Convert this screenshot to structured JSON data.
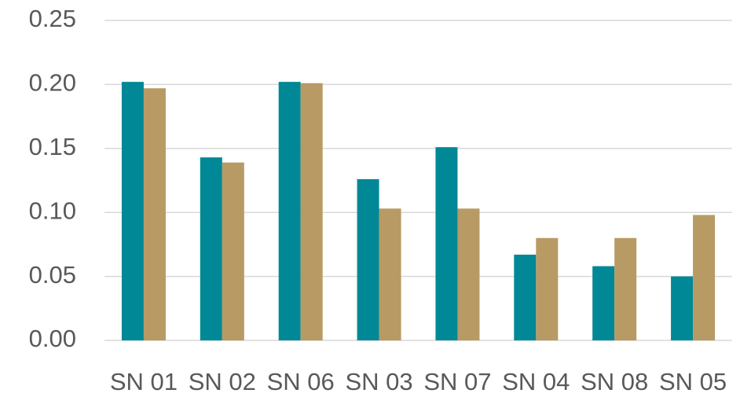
{
  "chart_data": {
    "type": "bar",
    "categories": [
      "SN 01",
      "SN 02",
      "SN 06",
      "SN 03",
      "SN 07",
      "SN 04",
      "SN 08",
      "SN 05"
    ],
    "series": [
      {
        "color": "#008896",
        "values": [
          0.202,
          0.143,
          0.202,
          0.126,
          0.151,
          0.067,
          0.058,
          0.05
        ]
      },
      {
        "color": "#b89a64",
        "values": [
          0.197,
          0.139,
          0.201,
          0.103,
          0.103,
          0.08,
          0.08,
          0.098
        ]
      }
    ],
    "ylim": [
      0,
      0.25
    ],
    "yticks": [
      {
        "value": 0,
        "label": "0.00"
      },
      0.05,
      {
        "value": 0.1,
        "label": "0.10"
      },
      0.15,
      {
        "value": 0.2,
        "label": "0.20"
      },
      0.25
    ],
    "grid": true
  }
}
